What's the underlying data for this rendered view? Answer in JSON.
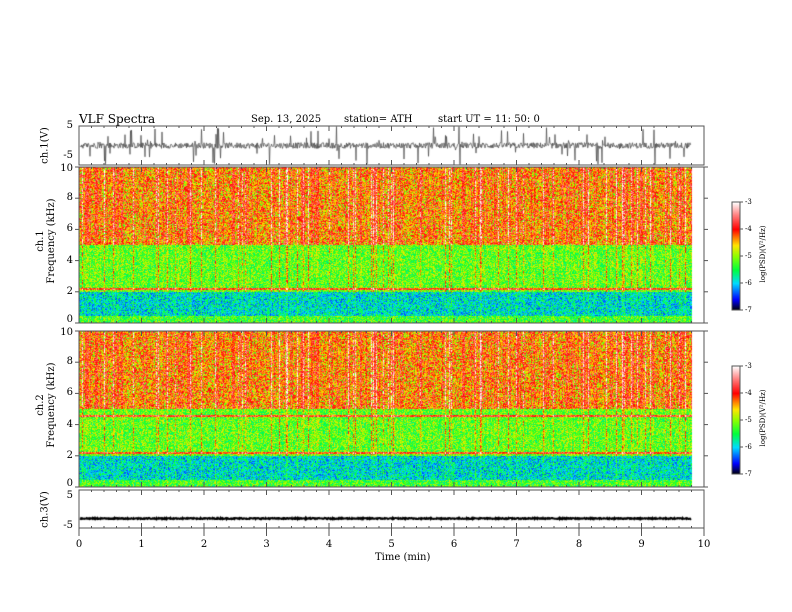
{
  "header": {
    "title": "VLF  Spectra",
    "date": "Sep. 13, 2025",
    "station": "station= ATH",
    "start": "start  UT  =    11: 50: 0"
  },
  "chart_data": [
    {
      "type": "line",
      "name": "ch1 waveform",
      "ylabel": "ch.1(V)",
      "ylim": [
        -5,
        5
      ],
      "yticks": [
        "5",
        "-5"
      ],
      "mean": 0,
      "spread": 1.5
    },
    {
      "type": "heatmap",
      "name": "ch1 spectrogram",
      "ylabel": "ch.1\nFrequency (kHz)",
      "ylabel1": "ch.1",
      "ylabel2": "Frequency  (kHz)",
      "ylim": [
        0,
        10
      ],
      "yticks": [
        "0",
        "2",
        "4",
        "6",
        "8",
        "10"
      ],
      "xlim": [
        0,
        10
      ],
      "data_end_min": 9.8,
      "colorbar": {
        "label": "log(PSD)(V²/Hz)",
        "range": [
          -7,
          -3
        ],
        "ticks": [
          "-3",
          "-4",
          "-5",
          "-6",
          "-7"
        ]
      }
    },
    {
      "type": "heatmap",
      "name": "ch2 spectrogram",
      "ylabel1": "ch.2",
      "ylabel2": "Frequency  (kHz)",
      "ylim": [
        0,
        10
      ],
      "yticks": [
        "0",
        "2",
        "4",
        "6",
        "8",
        "10"
      ],
      "xlim": [
        0,
        10
      ],
      "data_end_min": 9.8,
      "colorbar": {
        "label": "log(PSD)(V²/Hz)",
        "range": [
          -7,
          -3
        ],
        "ticks": [
          "-3",
          "-4",
          "-5",
          "-6",
          "-7"
        ]
      }
    },
    {
      "type": "line",
      "name": "ch3 waveform",
      "ylabel": "ch.3(V)",
      "ylim": [
        -5,
        5
      ],
      "yticks": [
        "5",
        "-5"
      ],
      "mean": -2.5,
      "spread": 0.3
    }
  ],
  "xaxis": {
    "label": "Time  (min)",
    "ticks": [
      "0",
      "1",
      "2",
      "3",
      "4",
      "5",
      "6",
      "7",
      "8",
      "9",
      "10"
    ]
  }
}
